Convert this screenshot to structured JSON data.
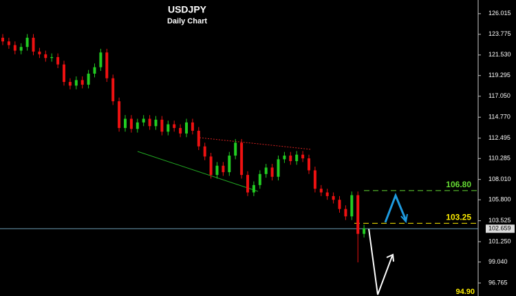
{
  "chart_data": {
    "type": "candlestick",
    "title": "USDJPY",
    "subtitle": "Daily Chart",
    "up_color": "#22cc22",
    "down_color": "#ee1111",
    "open": [
      123.4,
      123.0,
      122.6,
      122.0,
      122.4,
      123.4,
      121.9,
      121.6,
      121.2,
      121.3,
      120.5,
      118.6,
      118.2,
      118.8,
      118.3,
      119.5,
      120.2,
      121.8,
      119.0,
      116.5,
      113.6,
      114.6,
      113.5,
      114.2,
      114.6,
      113.8,
      114.5,
      113.2,
      114.0,
      113.6,
      113.0,
      114.2,
      113.3,
      111.6,
      110.5,
      108.5,
      109.5,
      108.8,
      110.6,
      112.0,
      108.5,
      106.6,
      107.4,
      108.6,
      109.3,
      108.3,
      110.2,
      110.6,
      110.0,
      110.7,
      110.3,
      109.0,
      107.0,
      106.6,
      106.2,
      105.8,
      104.8,
      104.0,
      106.3,
      102.1
    ],
    "high": [
      123.8,
      123.4,
      123.0,
      122.8,
      123.8,
      123.8,
      122.3,
      122.0,
      121.7,
      121.7,
      120.9,
      119.0,
      119.2,
      119.2,
      119.9,
      120.6,
      122.2,
      122.2,
      119.4,
      116.9,
      115.0,
      115.0,
      114.6,
      115.0,
      115.0,
      114.9,
      114.9,
      114.4,
      114.4,
      114.0,
      114.6,
      114.6,
      113.7,
      112.0,
      110.9,
      109.9,
      109.9,
      111.0,
      112.4,
      112.4,
      108.9,
      107.8,
      109.0,
      109.7,
      109.7,
      110.6,
      111.0,
      111.0,
      111.1,
      111.1,
      110.7,
      109.4,
      107.4,
      107.0,
      106.6,
      106.2,
      105.2,
      106.7,
      106.7,
      103.1
    ],
    "low": [
      122.6,
      122.2,
      121.6,
      121.6,
      122.0,
      121.5,
      121.2,
      120.8,
      120.8,
      120.1,
      118.2,
      117.8,
      117.8,
      117.9,
      117.9,
      119.1,
      119.8,
      118.6,
      116.1,
      113.2,
      113.2,
      113.1,
      113.1,
      113.8,
      113.4,
      113.4,
      112.8,
      112.8,
      113.2,
      112.6,
      112.6,
      112.9,
      111.2,
      110.1,
      108.1,
      108.1,
      108.4,
      108.4,
      110.2,
      108.1,
      106.2,
      106.2,
      107.0,
      108.2,
      107.9,
      107.9,
      109.8,
      109.6,
      109.6,
      109.9,
      108.6,
      106.6,
      106.2,
      105.8,
      105.4,
      104.4,
      103.6,
      103.6,
      99.0,
      101.7
    ],
    "close": [
      123.0,
      122.6,
      122.0,
      122.4,
      123.4,
      121.9,
      121.6,
      121.2,
      121.3,
      120.5,
      118.6,
      118.2,
      118.8,
      118.3,
      119.5,
      120.2,
      121.8,
      119.0,
      116.5,
      113.6,
      114.6,
      113.5,
      114.2,
      114.6,
      113.8,
      114.5,
      113.2,
      114.0,
      113.6,
      113.0,
      114.2,
      113.3,
      111.6,
      110.5,
      108.5,
      109.5,
      108.8,
      110.6,
      112.0,
      108.5,
      106.6,
      107.4,
      108.6,
      109.3,
      108.3,
      110.2,
      110.6,
      110.0,
      110.7,
      110.3,
      109.0,
      107.0,
      106.6,
      106.2,
      105.8,
      104.8,
      104.0,
      106.3,
      102.1,
      102.7
    ],
    "ylim": [
      95.35,
      127.5
    ],
    "yticks": [
      126.015,
      123.775,
      {
        "value": 121.53,
        "label": "121.530"
      },
      119.295,
      {
        "value": 117.05,
        "label": "117.050"
      },
      {
        "value": 114.77,
        "label": "114.770"
      },
      112.495,
      110.285,
      {
        "value": 108.01,
        "label": "108.010"
      },
      {
        "value": 105.8,
        "label": "105.800"
      },
      103.525,
      {
        "value": 101.25,
        "label": "101.250"
      },
      {
        "value": 99.04,
        "label": "99.040"
      },
      96.765
    ],
    "current_price": 102.659,
    "levels": [
      {
        "value": 106.8,
        "label": "106.80",
        "color": "#66dd33"
      },
      {
        "value": 103.25,
        "label": "103.25",
        "color": "#ffee00"
      }
    ],
    "targets": [
      {
        "value": 94.9,
        "label": "94.90",
        "color": "#ffee00"
      }
    ]
  }
}
